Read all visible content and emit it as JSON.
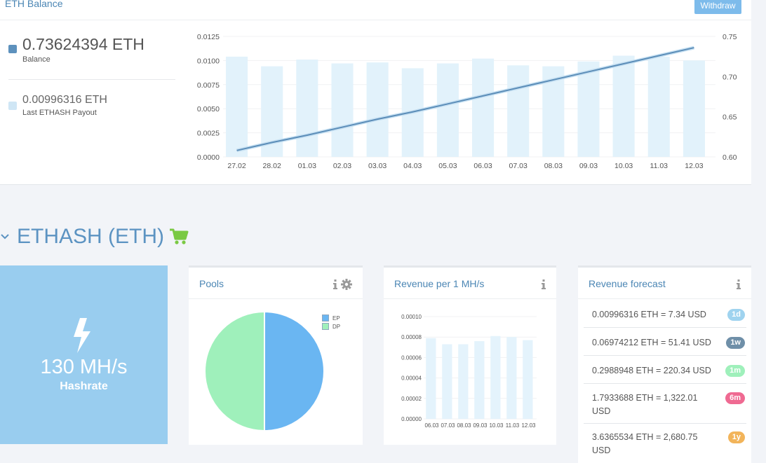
{
  "balance_panel": {
    "title": "ETH Balance",
    "withdraw_label": "Withdraw",
    "balance_value": "0.73624394 ETH",
    "balance_label": "Balance",
    "payout_value": "0.00996316 ETH",
    "payout_label": "Last ETHASH Payout",
    "colors": {
      "balance": "#5d91bd",
      "payout": "#cfe6f5"
    }
  },
  "chart_data": [
    {
      "type": "bar",
      "categories": [
        "27.02",
        "28.02",
        "01.03",
        "02.03",
        "03.03",
        "04.03",
        "05.03",
        "06.03",
        "07.03",
        "08.03",
        "09.03",
        "10.03",
        "11.03",
        "12.03"
      ],
      "series": [
        {
          "values": [
            0.0104,
            0.0094,
            0.0101,
            0.0097,
            0.0098,
            0.0092,
            0.0097,
            0.0102,
            0.0095,
            0.0094,
            0.0099,
            0.0105,
            0.0104,
            0.01
          ],
          "axis": "left",
          "color": "#e2f2fb"
        },
        {
          "type": "line",
          "values": [
            0.608,
            0.618,
            0.627,
            0.637,
            0.647,
            0.656,
            0.666,
            0.676,
            0.686,
            0.696,
            0.706,
            0.716,
            0.726,
            0.736
          ],
          "axis": "right",
          "color": "#5b8db8"
        }
      ],
      "yticks_left": [
        "0.0000",
        "0.0025",
        "0.0050",
        "0.0075",
        "0.0100",
        "0.0125"
      ],
      "ylim_left": [
        0,
        0.0125
      ],
      "yticks_right": [
        "0.60",
        "0.65",
        "0.70",
        "0.75"
      ],
      "ylim_right": [
        0.6,
        0.75
      ]
    },
    {
      "type": "pie",
      "labels": [
        "EP",
        "DP"
      ],
      "values": [
        50,
        50
      ],
      "colors": [
        "#6ab6f2",
        "#9ff0bb"
      ],
      "legend": "top-right"
    },
    {
      "type": "bar",
      "categories": [
        "06.03",
        "07.03",
        "08.03",
        "09.03",
        "10.03",
        "11.03",
        "12.03"
      ],
      "values": [
        7.9e-05,
        7.3e-05,
        7.3e-05,
        7.6e-05,
        8.1e-05,
        8e-05,
        7.7e-05
      ],
      "yticks": [
        "0.00000",
        "0.00002",
        "0.00004",
        "0.00006",
        "0.00008",
        "0.00010"
      ],
      "ylim": [
        0,
        0.0001
      ],
      "color": "#e4f3fc"
    }
  ],
  "section": {
    "title": "ETHASH (ETH)"
  },
  "hashrate": {
    "value": "130 MH/s",
    "label": "Hashrate"
  },
  "pools_card": {
    "title": "Pools"
  },
  "revenue_card": {
    "title": "Revenue per 1 MH/s"
  },
  "forecast_card": {
    "title": "Revenue forecast",
    "rows": [
      {
        "text": "0.00996316 ETH = 7.34 USD",
        "badge": "1d",
        "color": "#9fd3ef"
      },
      {
        "text": "0.06974212 ETH = 51.41 USD",
        "badge": "1w",
        "color": "#6f8fa8"
      },
      {
        "text": "0.2988948 ETH = 220.34 USD",
        "badge": "1m",
        "color": "#9ff0bb"
      },
      {
        "text": "1.7933688 ETH = 1,322.01 USD",
        "badge": "6m",
        "color": "#ef6a92"
      },
      {
        "text": "3.6365534 ETH = 2,680.75 USD",
        "badge": "1y",
        "color": "#f2b45a"
      }
    ]
  },
  "icons": [
    "chevron-down-icon",
    "cart-icon",
    "bolt-icon",
    "info-icon",
    "gear-icon"
  ],
  "colors": {
    "accent": "#4b86b4",
    "hashrate_tile": "#99cdef",
    "cart": "#7ac943"
  }
}
